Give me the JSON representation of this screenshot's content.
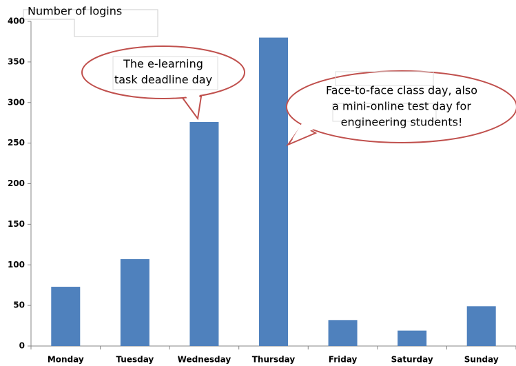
{
  "chart_data": {
    "type": "bar",
    "y_axis_label": "Number of logins",
    "categories": [
      "Monday",
      "Tuesday",
      "Wednesday",
      "Thursday",
      "Friday",
      "Saturday",
      "Sunday"
    ],
    "values": [
      73,
      107,
      276,
      380,
      32,
      19,
      49
    ],
    "color": "#4f81bd",
    "ylim": [
      0,
      400
    ],
    "yticks": [
      0,
      50,
      100,
      150,
      200,
      250,
      300,
      350,
      400
    ],
    "grid": false,
    "annotations": [
      {
        "lines": [
          "The e-learning",
          "task deadline day"
        ],
        "color": "#c0504d"
      },
      {
        "lines": [
          "Face-to-face class day, also",
          "a mini-online test day for",
          "engineering students!"
        ],
        "color": "#c0504d"
      }
    ]
  }
}
